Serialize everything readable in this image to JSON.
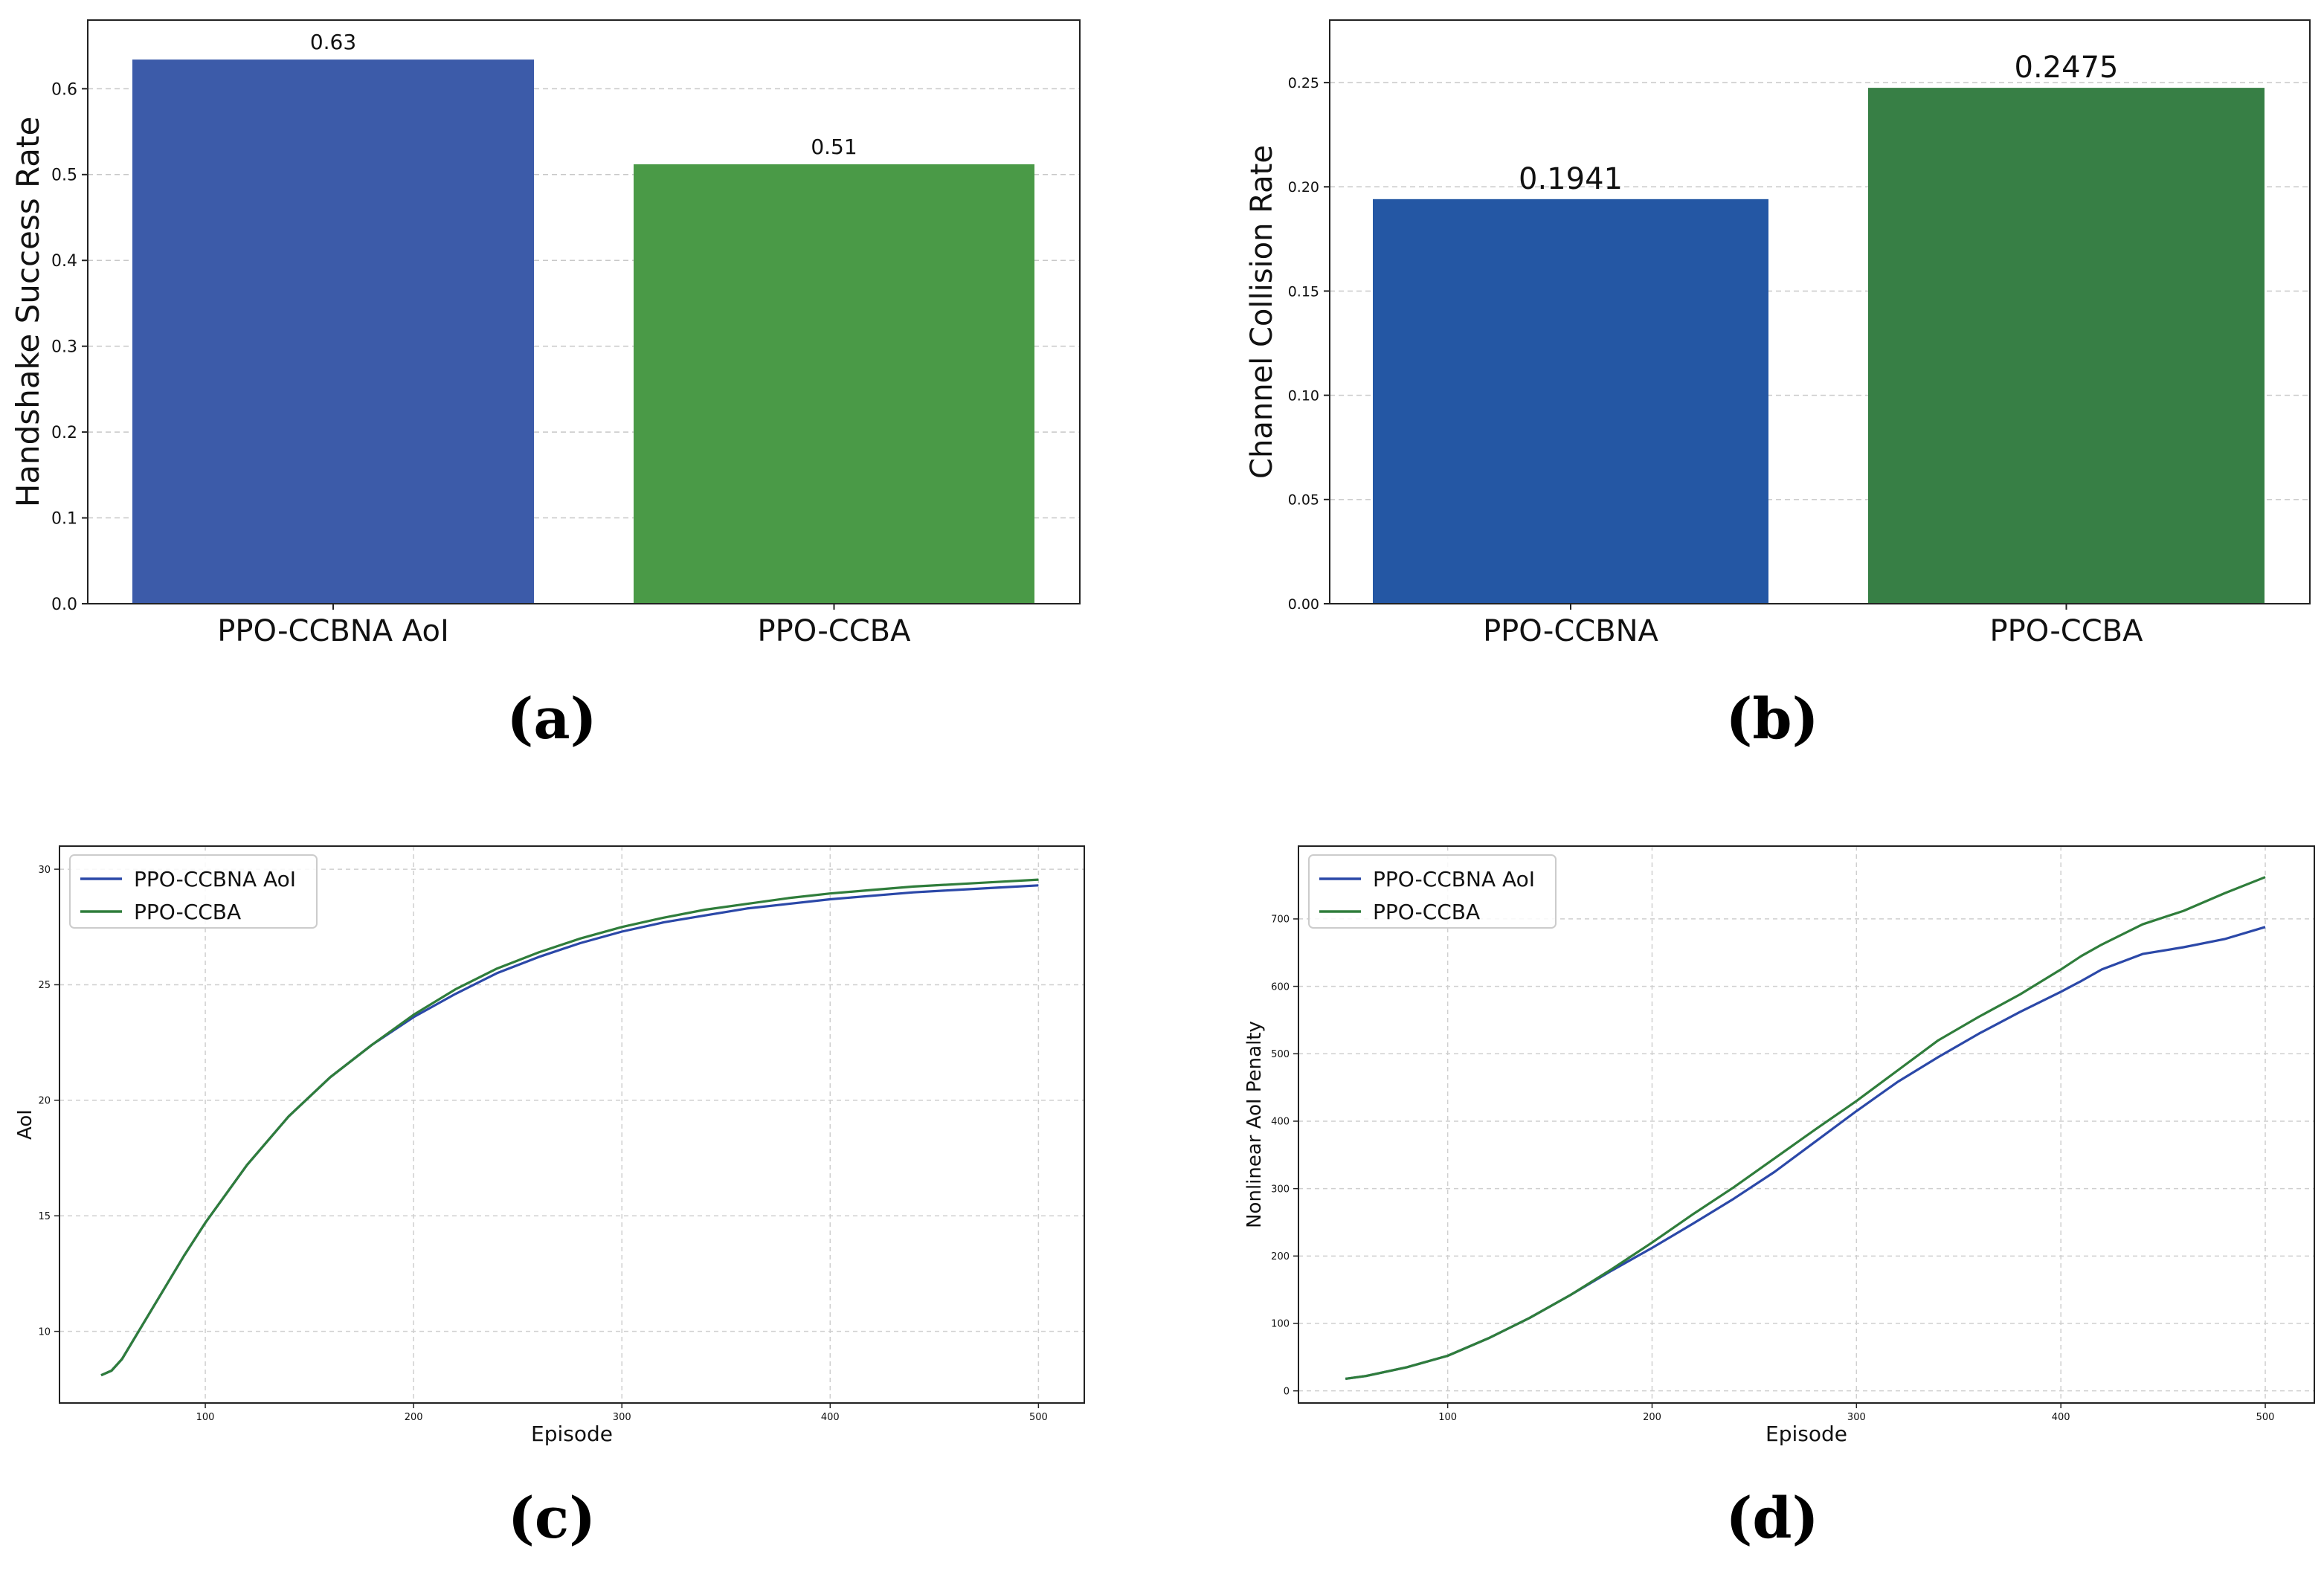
{
  "captions": {
    "a": "(a)",
    "b": "(b)",
    "c": "(c)",
    "d": "(d)"
  },
  "colors": {
    "blue_a": "#3C5BA9",
    "green_a": "#4A9A47",
    "blue_b": "#2457A4",
    "green_b": "#377F45",
    "line_blue": "#2B48A8",
    "line_green": "#2F7D3B"
  },
  "chart_data": [
    {
      "id": "a",
      "type": "bar",
      "title": "",
      "xlabel": "",
      "ylabel": "Handshake Success Rate",
      "categories": [
        "PPO-CCBNA AoI",
        "PPO-CCBA"
      ],
      "values": [
        0.634,
        0.512
      ],
      "value_labels": [
        "0.63",
        "0.51"
      ],
      "ylim": [
        0,
        0.68
      ],
      "yticks": [
        0.0,
        0.1,
        0.2,
        0.3,
        0.4,
        0.5,
        0.6
      ],
      "ytick_labels": [
        "0.0",
        "0.1",
        "0.2",
        "0.3",
        "0.4",
        "0.5",
        "0.6"
      ],
      "grid": "y-dashed"
    },
    {
      "id": "b",
      "type": "bar",
      "title": "",
      "xlabel": "",
      "ylabel": "Channel Collision Rate",
      "categories": [
        "PPO-CCBNA",
        "PPO-CCBA"
      ],
      "values": [
        0.1941,
        0.2475
      ],
      "value_labels": [
        "0.1941",
        "0.2475"
      ],
      "ylim": [
        0,
        0.28
      ],
      "yticks": [
        0.0,
        0.05,
        0.1,
        0.15,
        0.2,
        0.25
      ],
      "ytick_labels": [
        "0.00",
        "0.05",
        "0.10",
        "0.15",
        "0.20",
        "0.25"
      ],
      "grid": "y-dashed"
    },
    {
      "id": "c",
      "type": "line",
      "title": "",
      "xlabel": "Episode",
      "ylabel": "AoI",
      "xlim": [
        30,
        522
      ],
      "ylim": [
        6.9,
        31.0
      ],
      "xticks": [
        100,
        200,
        300,
        400,
        500
      ],
      "yticks": [
        10,
        15,
        20,
        25,
        30
      ],
      "legend": "top-left",
      "grid": "both-dashed",
      "x": [
        50,
        55,
        60,
        70,
        80,
        90,
        100,
        120,
        140,
        160,
        180,
        200,
        220,
        240,
        260,
        280,
        300,
        320,
        340,
        360,
        380,
        400,
        420,
        440,
        460,
        480,
        500
      ],
      "series": [
        {
          "name": "PPO-CCBNA AoI",
          "values": [
            8.1,
            8.3,
            8.8,
            10.3,
            11.8,
            13.3,
            14.7,
            17.2,
            19.3,
            21.0,
            22.4,
            23.6,
            24.6,
            25.5,
            26.2,
            26.8,
            27.3,
            27.7,
            28.0,
            28.3,
            28.5,
            28.7,
            28.85,
            29.0,
            29.1,
            29.2,
            29.3
          ]
        },
        {
          "name": "PPO-CCBA",
          "values": [
            8.1,
            8.3,
            8.8,
            10.3,
            11.8,
            13.3,
            14.7,
            17.2,
            19.3,
            21.0,
            22.4,
            23.7,
            24.8,
            25.7,
            26.4,
            27.0,
            27.5,
            27.9,
            28.25,
            28.5,
            28.75,
            28.95,
            29.1,
            29.25,
            29.35,
            29.45,
            29.55
          ]
        }
      ]
    },
    {
      "id": "d",
      "type": "line",
      "title": "",
      "xlabel": "Episode",
      "ylabel": "Nonlinear AoI Penalty",
      "xlim": [
        27,
        524
      ],
      "ylim": [
        -18,
        808
      ],
      "xticks": [
        100,
        200,
        300,
        400,
        500
      ],
      "yticks": [
        0,
        100,
        200,
        300,
        400,
        500,
        600,
        700
      ],
      "legend": "top-left",
      "grid": "both-dashed",
      "x": [
        50,
        60,
        80,
        100,
        120,
        140,
        160,
        180,
        200,
        220,
        240,
        260,
        280,
        300,
        320,
        340,
        360,
        380,
        400,
        410,
        420,
        440,
        460,
        480,
        500
      ],
      "series": [
        {
          "name": "PPO-CCBNA AoI",
          "values": [
            18,
            22,
            35,
            52,
            78,
            108,
            142,
            178,
            212,
            248,
            285,
            325,
            370,
            415,
            458,
            495,
            530,
            562,
            592,
            608,
            625,
            648,
            658,
            670,
            688
          ]
        },
        {
          "name": "PPO-CCBA",
          "values": [
            18,
            22,
            35,
            52,
            78,
            108,
            142,
            180,
            220,
            262,
            302,
            345,
            388,
            430,
            475,
            520,
            555,
            588,
            625,
            645,
            662,
            692,
            712,
            738,
            762
          ]
        }
      ]
    }
  ]
}
